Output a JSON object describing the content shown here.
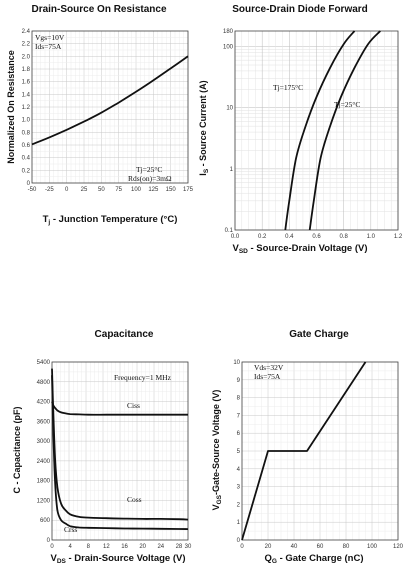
{
  "chart_data": [
    {
      "type": "line",
      "title": "Drain-Source On Resistance",
      "xlabel_main": "T",
      "xlabel_sub": "j",
      "xlabel_rest": " - Junction Temperature (°C)",
      "ylabel": "Normalized On Resistance",
      "xlim": [
        -50,
        175
      ],
      "ylim": [
        0,
        2.4
      ],
      "xticks": [
        "-50",
        "-25",
        "0",
        "25",
        "50",
        "75",
        "100",
        "125",
        "150",
        "175"
      ],
      "yticks": [
        "0",
        "0.2",
        "0.4",
        "0.6",
        "0.8",
        "1.0",
        "1.2",
        "1.4",
        "1.6",
        "1.8",
        "2.0",
        "2.2",
        "2.4"
      ],
      "grid": true,
      "annotations": [
        "Vgs=10V",
        "Ids=75A",
        "Tj=25°C",
        "Rds(on)=3mΩ"
      ],
      "series": [
        {
          "x": [
            -50,
            -25,
            0,
            25,
            50,
            75,
            100,
            125,
            150,
            175
          ],
          "y": [
            0.61,
            0.72,
            0.84,
            0.97,
            1.11,
            1.27,
            1.44,
            1.62,
            1.81,
            2.0
          ]
        }
      ]
    },
    {
      "type": "line",
      "title": "Source-Drain Diode Forward",
      "xlabel_main": "V",
      "xlabel_sub": "SD",
      "xlabel_rest": " - Source-Drain Voltage (V)",
      "ylabel_main": "I",
      "ylabel_sub": "S",
      "ylabel_rest": " - Source Current (A)",
      "xlim": [
        0,
        1.2
      ],
      "ylim": [
        0.1,
        180
      ],
      "yscale": "log",
      "xticks": [
        "0.0",
        "0.2",
        "0.4",
        "0.6",
        "0.8",
        "1.0",
        "1.2"
      ],
      "yticks": [
        {
          "v": 0.1,
          "label": "0.1"
        },
        {
          "v": 1,
          "label": "1"
        },
        {
          "v": 10,
          "label": "10"
        },
        {
          "v": 100,
          "label": "100"
        },
        {
          "v": 180,
          "label": "180"
        }
      ],
      "grid": true,
      "series": [
        {
          "name": "Tj=175°C",
          "x": [
            0.37,
            0.4,
            0.45,
            0.52,
            0.6,
            0.7,
            0.8,
            0.88
          ],
          "y": [
            0.1,
            0.3,
            1.5,
            5,
            15,
            45,
            110,
            180
          ]
        },
        {
          "name": "Tj=25°C",
          "x": [
            0.55,
            0.58,
            0.63,
            0.7,
            0.78,
            0.88,
            0.98,
            1.07
          ],
          "y": [
            0.1,
            0.3,
            1.5,
            5,
            15,
            45,
            110,
            180
          ]
        }
      ]
    },
    {
      "type": "line",
      "title": "Capacitance",
      "xlabel_main": "V",
      "xlabel_sub": "DS",
      "xlabel_rest": " - Drain-Source Voltage (V)",
      "ylabel": "C - Capacitance (pF)",
      "xlim": [
        0,
        30
      ],
      "ylim": [
        0,
        5400
      ],
      "xticks": [
        "0",
        "4",
        "8",
        "12",
        "16",
        "20",
        "24",
        "28",
        "30"
      ],
      "xtick_values": [
        0,
        4,
        8,
        12,
        16,
        20,
        24,
        28,
        30
      ],
      "yticks": [
        "0",
        "600",
        "1200",
        "1800",
        "2400",
        "3000",
        "3600",
        "4200",
        "4800",
        "5400"
      ],
      "grid": true,
      "annotations": [
        "Frequency=1 MHz"
      ],
      "series": [
        {
          "name": "Ciss",
          "x": [
            0,
            0.3,
            0.7,
            1.2,
            2,
            3,
            4,
            6,
            8,
            12,
            16,
            20,
            24,
            28,
            30
          ],
          "y": [
            4200,
            4080,
            4000,
            3930,
            3870,
            3840,
            3820,
            3810,
            3800,
            3800,
            3800,
            3800,
            3800,
            3800,
            3800
          ]
        },
        {
          "name": "Coss",
          "x": [
            0,
            0.3,
            0.7,
            1.2,
            2,
            3,
            4,
            6,
            8,
            12,
            16,
            20,
            24,
            28,
            30
          ],
          "y": [
            5200,
            3800,
            2400,
            1600,
            1100,
            900,
            780,
            700,
            680,
            660,
            650,
            640,
            640,
            630,
            620
          ]
        },
        {
          "name": "Crss",
          "x": [
            0,
            0.3,
            0.7,
            1.2,
            2,
            3,
            4,
            6,
            8,
            12,
            16,
            20,
            24,
            28,
            30
          ],
          "y": [
            5000,
            3200,
            1700,
            900,
            600,
            500,
            420,
            380,
            370,
            360,
            350,
            345,
            340,
            335,
            330
          ]
        }
      ]
    },
    {
      "type": "line",
      "title": "Gate Charge",
      "xlabel_main": "Q",
      "xlabel_sub": "G",
      "xlabel_rest": " - Gate Charge (nC)",
      "ylabel_main": "V",
      "ylabel_sub": "GS",
      "ylabel_rest": "-Gate-Source Voltage (V)",
      "xlim": [
        0,
        120
      ],
      "ylim": [
        0,
        10
      ],
      "xticks": [
        "0",
        "20",
        "40",
        "60",
        "80",
        "100",
        "120"
      ],
      "yticks": [
        "0",
        "1",
        "2",
        "3",
        "4",
        "5",
        "6",
        "7",
        "8",
        "9",
        "10"
      ],
      "grid": true,
      "annotations": [
        "Vds=32V",
        "Ids=75A"
      ],
      "series": [
        {
          "x": [
            0,
            20,
            50,
            95
          ],
          "y": [
            0,
            5,
            5,
            10
          ]
        }
      ]
    }
  ]
}
